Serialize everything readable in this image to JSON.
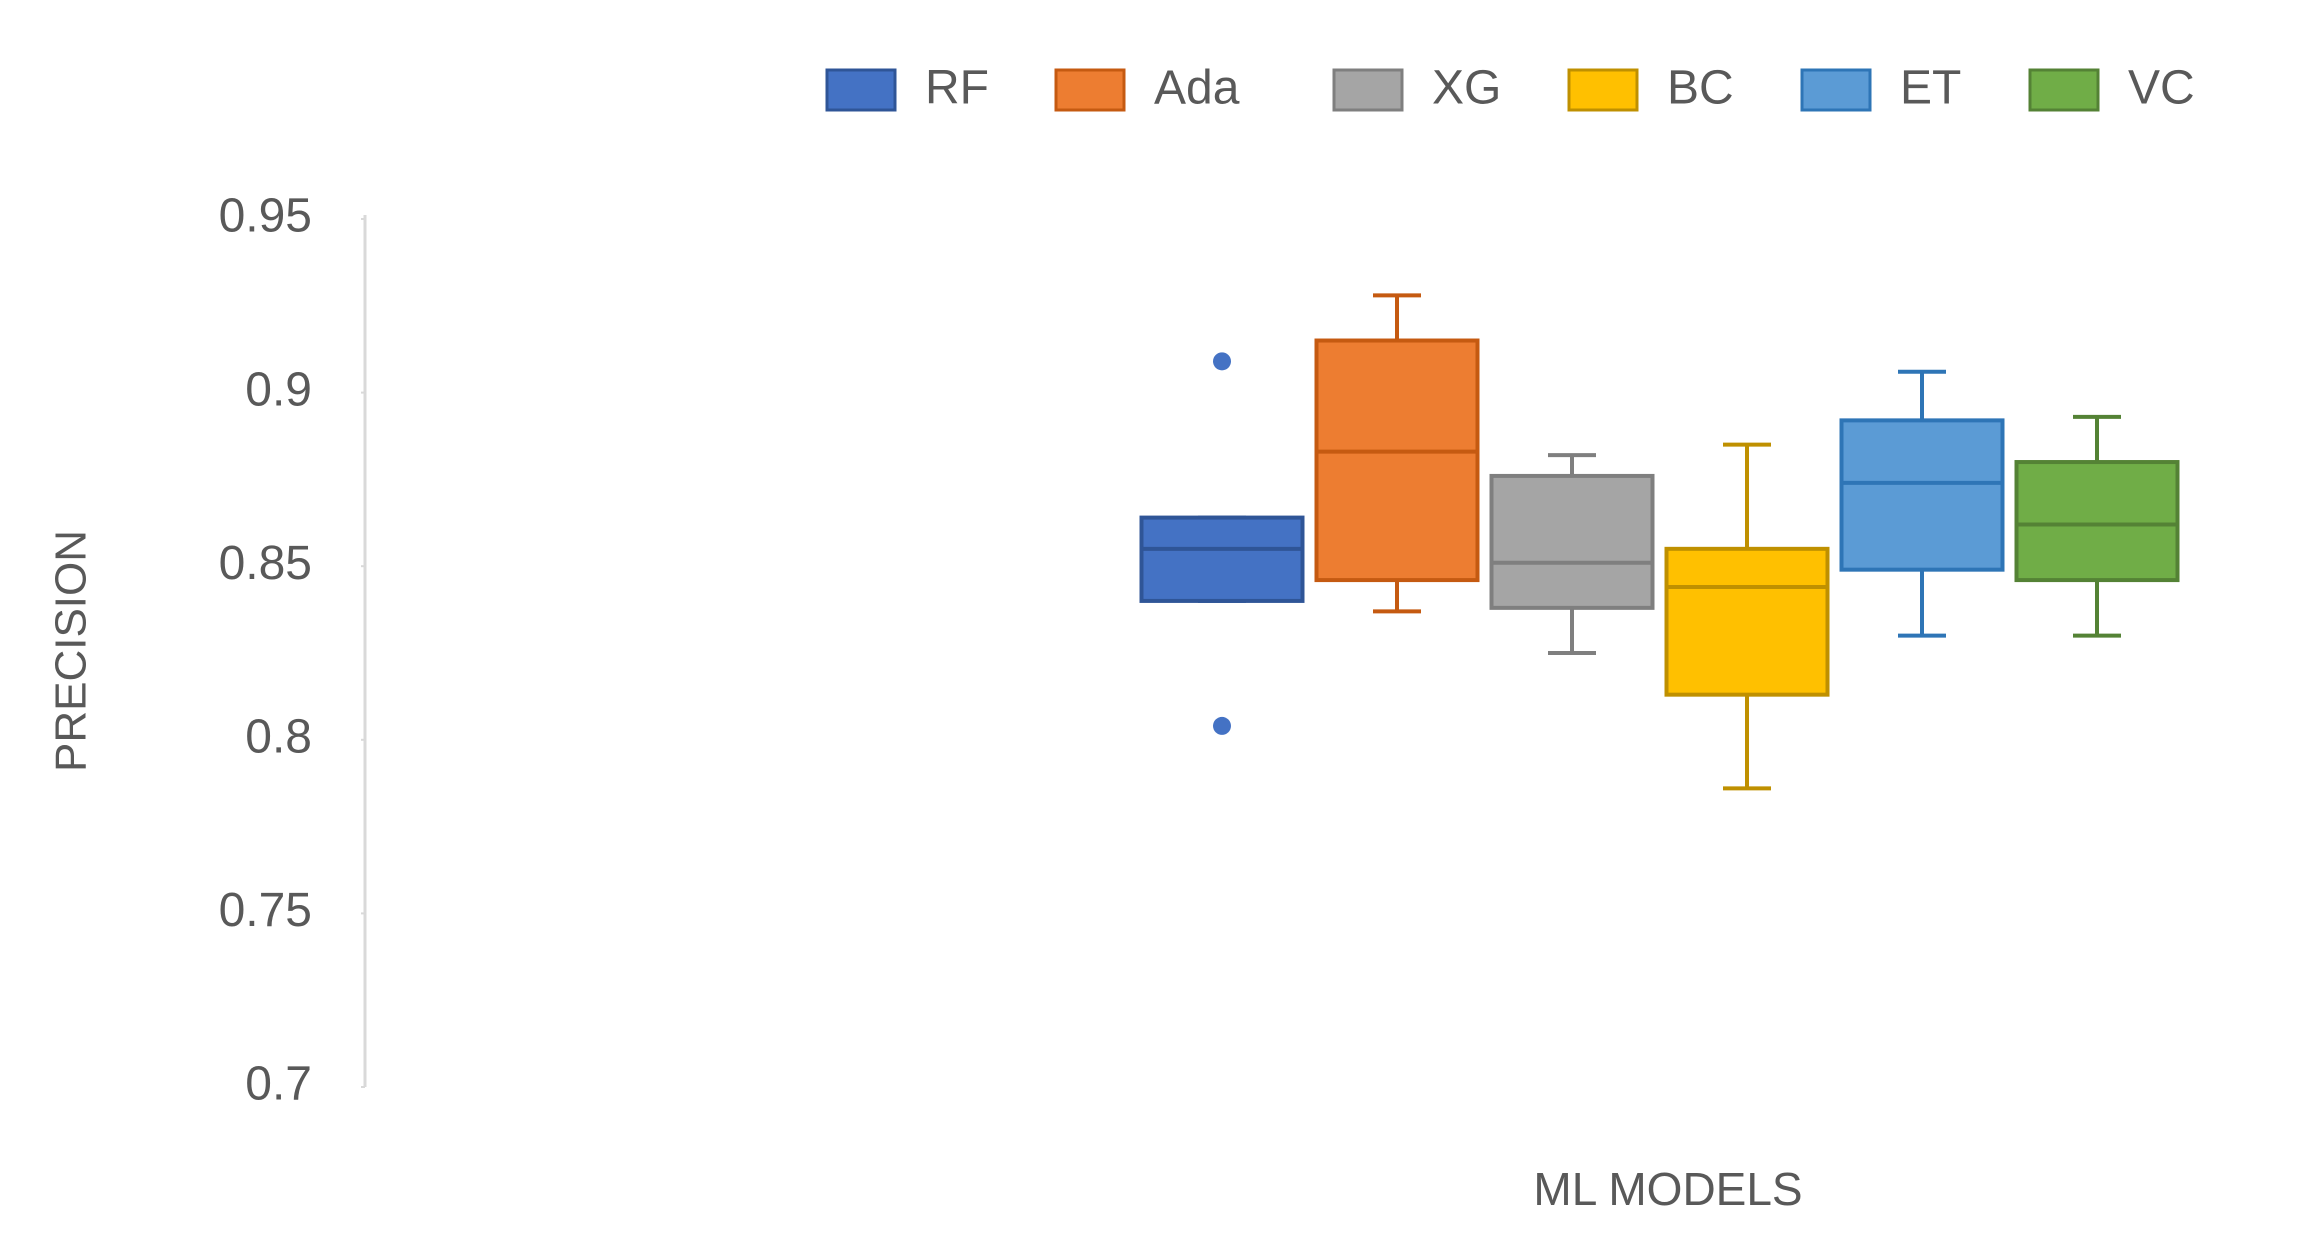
{
  "chart_data": {
    "type": "box",
    "y_label": "PRECISION",
    "x_label": "ML MODELS",
    "ylim": [
      0.7,
      0.95
    ],
    "yticks": [
      0.7,
      0.75,
      0.8,
      0.85,
      0.9,
      0.95
    ],
    "legend": "top",
    "series": [
      {
        "name": "RF",
        "color": "#4472c4",
        "border": "#2f5597",
        "min": 0.84,
        "q1": 0.84,
        "median": 0.855,
        "q3": 0.864,
        "max": 0.864,
        "outliers": [
          0.909,
          0.804
        ]
      },
      {
        "name": "Ada",
        "color": "#ed7d31",
        "border": "#c55a11",
        "min": 0.837,
        "q1": 0.846,
        "median": 0.883,
        "q3": 0.915,
        "max": 0.928,
        "outliers": []
      },
      {
        "name": "XG",
        "color": "#a5a5a5",
        "border": "#7f7f7f",
        "min": 0.825,
        "q1": 0.838,
        "median": 0.851,
        "q3": 0.876,
        "max": 0.882,
        "outliers": []
      },
      {
        "name": "BC",
        "color": "#ffc000",
        "border": "#bf9000",
        "min": 0.786,
        "q1": 0.813,
        "median": 0.844,
        "q3": 0.855,
        "max": 0.885,
        "outliers": []
      },
      {
        "name": "ET",
        "color": "#5b9bd5",
        "border": "#2e75b6",
        "min": 0.83,
        "q1": 0.849,
        "median": 0.874,
        "q3": 0.892,
        "max": 0.906,
        "outliers": []
      },
      {
        "name": "VC",
        "color": "#70ad47",
        "border": "#548235",
        "min": 0.83,
        "q1": 0.846,
        "median": 0.862,
        "q3": 0.88,
        "max": 0.893,
        "outliers": []
      }
    ]
  }
}
